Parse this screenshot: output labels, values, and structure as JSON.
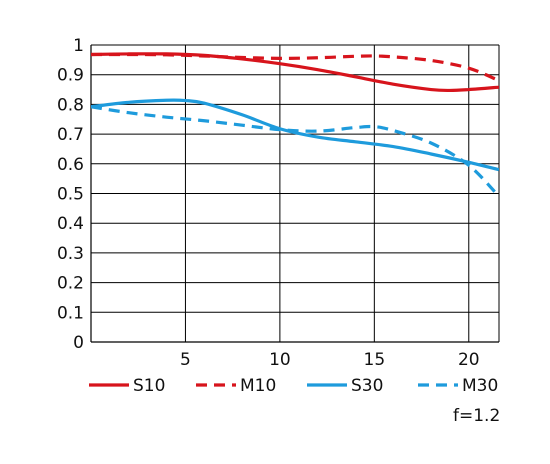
{
  "chart_data": {
    "type": "line",
    "title": "",
    "xlabel": "",
    "ylabel": "",
    "xlim": [
      0,
      21.6
    ],
    "ylim": [
      0,
      1
    ],
    "x_ticks": [
      "5",
      "10",
      "15",
      "20"
    ],
    "y_ticks": [
      "0",
      "0.1",
      "0.2",
      "0.3",
      "0.4",
      "0.5",
      "0.6",
      "0.7",
      "0.8",
      "0.9",
      "1"
    ],
    "grid": true,
    "legend_position": "bottom",
    "series": [
      {
        "name": "S10",
        "color": "#d7141c",
        "dash": "solid",
        "points": [
          [
            0,
            0.968
          ],
          [
            2,
            0.97
          ],
          [
            4,
            0.97
          ],
          [
            6,
            0.965
          ],
          [
            8,
            0.953
          ],
          [
            10,
            0.937
          ],
          [
            12,
            0.917
          ],
          [
            14,
            0.893
          ],
          [
            16,
            0.868
          ],
          [
            18,
            0.85
          ],
          [
            19,
            0.847
          ],
          [
            20,
            0.85
          ],
          [
            21.6,
            0.858
          ]
        ]
      },
      {
        "name": "M10",
        "color": "#d7141c",
        "dash": "dashed",
        "points": [
          [
            0,
            0.968
          ],
          [
            2,
            0.968
          ],
          [
            4,
            0.967
          ],
          [
            6,
            0.963
          ],
          [
            8,
            0.958
          ],
          [
            10,
            0.955
          ],
          [
            12,
            0.957
          ],
          [
            14,
            0.962
          ],
          [
            15,
            0.963
          ],
          [
            16,
            0.96
          ],
          [
            18,
            0.948
          ],
          [
            20,
            0.922
          ],
          [
            21.6,
            0.88
          ]
        ]
      },
      {
        "name": "S30",
        "color": "#1e9bdc",
        "dash": "solid",
        "points": [
          [
            0,
            0.792
          ],
          [
            2,
            0.807
          ],
          [
            4,
            0.814
          ],
          [
            5,
            0.813
          ],
          [
            6,
            0.804
          ],
          [
            8,
            0.765
          ],
          [
            10,
            0.718
          ],
          [
            12,
            0.69
          ],
          [
            14,
            0.674
          ],
          [
            16,
            0.658
          ],
          [
            18,
            0.633
          ],
          [
            20,
            0.605
          ],
          [
            21.6,
            0.58
          ]
        ]
      },
      {
        "name": "M30",
        "color": "#1e9bdc",
        "dash": "dashed",
        "points": [
          [
            0,
            0.792
          ],
          [
            2,
            0.772
          ],
          [
            4,
            0.757
          ],
          [
            6,
            0.745
          ],
          [
            8,
            0.73
          ],
          [
            10,
            0.715
          ],
          [
            12,
            0.71
          ],
          [
            14,
            0.722
          ],
          [
            15,
            0.725
          ],
          [
            16,
            0.712
          ],
          [
            18,
            0.67
          ],
          [
            20,
            0.595
          ],
          [
            21.6,
            0.49
          ]
        ]
      }
    ]
  },
  "note": "f=1.2"
}
